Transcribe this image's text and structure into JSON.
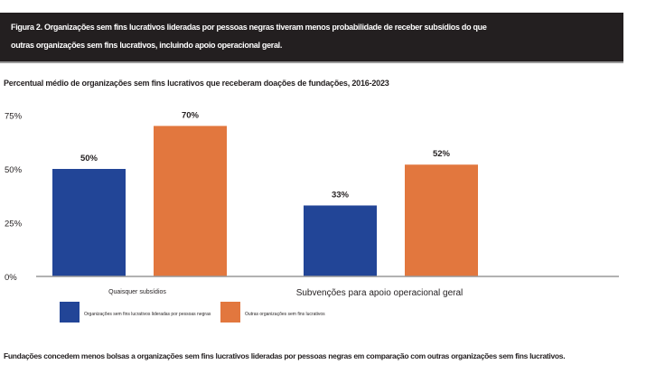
{
  "title_lines": [
    "Figura 2. Organizações sem fins lucrativos lideradas por pessoas negras tiveram menos probabilidade de receber subsídios do que",
    "outras organizações sem fins lucrativos, incluindo apoio operacional geral."
  ],
  "footer": "Fundações concedem menos bolsas a organizações sem fins lucrativos lideradas por pessoas negras em comparação com outras organizações sem fins lucrativos.",
  "chart_data": {
    "type": "bar",
    "title": "Percentual médio de organizações sem fins lucrativos que receberam doações de fundações, 2016-2023",
    "categories": [
      "Quaisquer subsídios",
      "Subvenções para apoio operacional geral"
    ],
    "series": [
      {
        "name": "Organizações sem fins lucrativos lideradas por pessoas negras",
        "values": [
          50,
          33
        ],
        "labels": [
          "50%",
          "33%"
        ],
        "color": "#224597"
      },
      {
        "name": "Outras organizações sem fins lucrativos",
        "values": [
          70,
          52
        ],
        "labels": [
          "70%",
          "52%"
        ],
        "color": "#e2773e"
      }
    ],
    "yticks": [
      0,
      25,
      50,
      75
    ],
    "ytick_labels": [
      "0%",
      "25%",
      "50%",
      "75%"
    ],
    "ylim": [
      0,
      75
    ],
    "grid": false,
    "legend": "bottom-left"
  }
}
